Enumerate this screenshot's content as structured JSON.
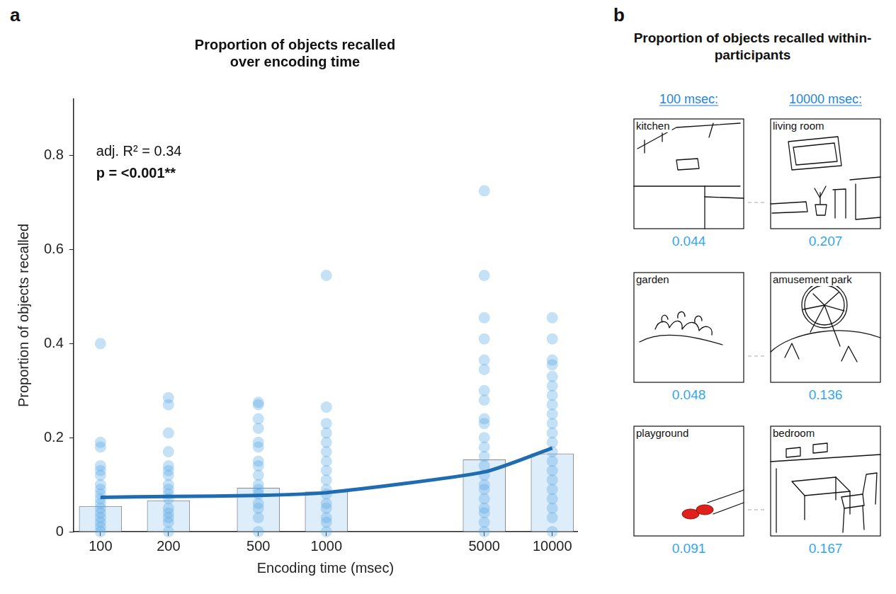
{
  "chart_data": {
    "type": "bar",
    "panel_label": "a",
    "title": "Proportion of objects recalled over encoding time",
    "x_label": "Encoding time (msec)",
    "y_label": "Proportion of objects recalled",
    "annotations": [
      "adj. R² = 0.34",
      "p = <0.001**"
    ],
    "log": "x",
    "grid": false,
    "x": [
      100,
      200,
      500,
      1000,
      5000,
      10000
    ],
    "xlim": [
      76,
      12900
    ],
    "xticks": [
      100,
      200,
      500,
      1000,
      5000,
      10000
    ],
    "ylim": [
      0,
      0.92
    ],
    "yticks": [
      0,
      0.2,
      0.4,
      0.6,
      0.8
    ],
    "series": [
      {
        "type": "bar",
        "color": "#ddedf9",
        "values": [
          0.054,
          0.066,
          0.093,
          0.085,
          0.153,
          0.166
        ]
      },
      {
        "type": "line",
        "color": "#1f6cb0",
        "values": [
          0.073,
          0.075,
          0.077,
          0.083,
          0.127,
          0.178
        ]
      },
      {
        "type": "scatter",
        "color": "#5aa9e6",
        "values": [
          [
            0.4,
            0.19,
            0.18,
            0.14,
            0.13,
            0.12,
            0.1,
            0.09,
            0.08,
            0.07,
            0.06,
            0.05,
            0.04,
            0.03,
            0.02,
            0.01,
            0
          ],
          [
            0.285,
            0.27,
            0.21,
            0.17,
            0.14,
            0.13,
            0.12,
            0.1,
            0.09,
            0.08,
            0.07,
            0.05,
            0.04,
            0.03,
            0.02,
            0
          ],
          [
            0.275,
            0.27,
            0.24,
            0.22,
            0.19,
            0.18,
            0.15,
            0.14,
            0.12,
            0.1,
            0.09,
            0.08,
            0.06,
            0.05,
            0.03,
            0
          ],
          [
            0.545,
            0.265,
            0.23,
            0.21,
            0.19,
            0.17,
            0.15,
            0.13,
            0.11,
            0.09,
            0.08,
            0.06,
            0.05,
            0.03,
            0.02,
            0
          ],
          [
            0.725,
            0.545,
            0.455,
            0.41,
            0.365,
            0.345,
            0.3,
            0.28,
            0.24,
            0.23,
            0.2,
            0.18,
            0.16,
            0.14,
            0.12,
            0.1,
            0.09,
            0.07,
            0.05,
            0.04,
            0.02,
            0
          ],
          [
            0.455,
            0.41,
            0.365,
            0.355,
            0.33,
            0.31,
            0.29,
            0.27,
            0.25,
            0.23,
            0.21,
            0.19,
            0.17,
            0.15,
            0.13,
            0.11,
            0.09,
            0.07,
            0.05,
            0.03,
            0
          ]
        ]
      }
    ]
  },
  "panel_b": {
    "panel_label": "b",
    "title": "Proportion of objects recalled within-participants",
    "columns": [
      "100 msec:",
      "10000 msec:"
    ],
    "rows": [
      {
        "left": {
          "label": "kitchen",
          "value": 0.044
        },
        "right": {
          "label": "living room",
          "value": 0.207
        }
      },
      {
        "left": {
          "label": "garden",
          "value": 0.048
        },
        "right": {
          "label": "amusement park",
          "value": 0.136
        }
      },
      {
        "left": {
          "label": "playground",
          "value": 0.091
        },
        "right": {
          "label": "bedroom",
          "value": 0.167
        }
      }
    ]
  }
}
